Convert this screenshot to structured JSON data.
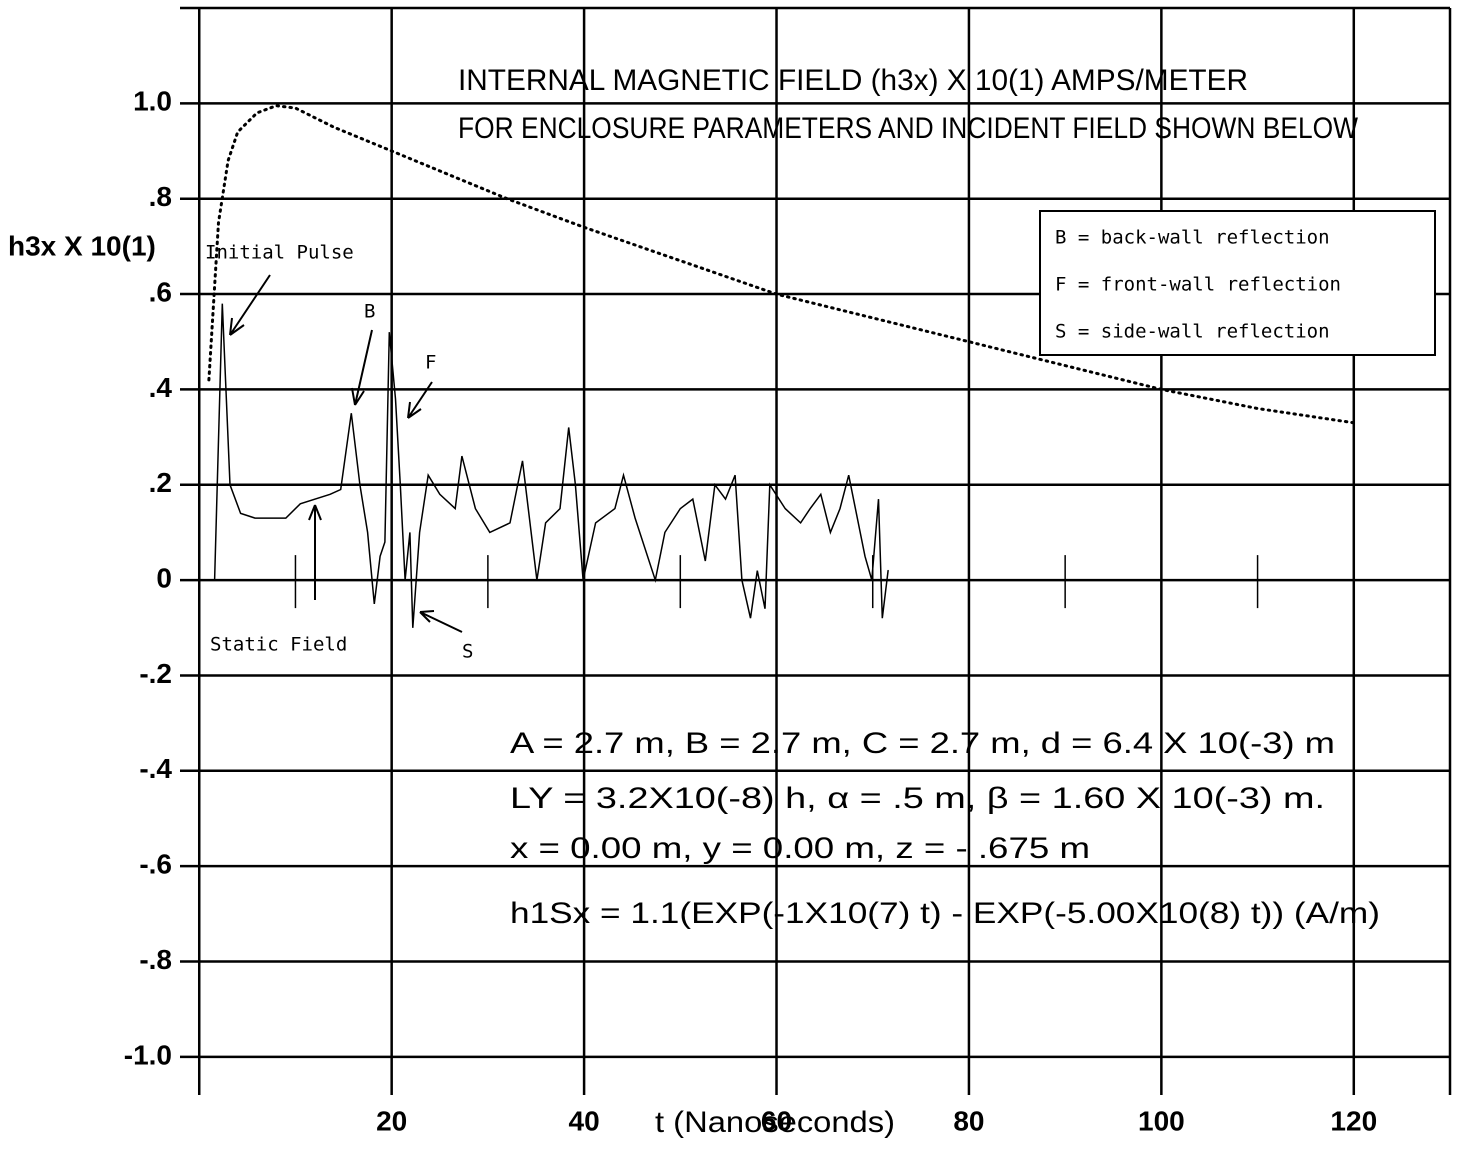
{
  "chart_data": {
    "type": "line",
    "title": [
      "INTERNAL MAGNETIC FIELD (h3x) X 10(1)  AMPS/METER",
      "FOR ENCLOSURE PARAMETERS AND INCIDENT FIELD  SHOWN BELOW"
    ],
    "ylabel": "h3x X 10(1)",
    "xlabel": "t (Nanoseconds)",
    "xlim": [
      -2,
      130
    ],
    "ylim": [
      -1.08,
      1.2
    ],
    "xticks": [
      20,
      40,
      60,
      80,
      100,
      120
    ],
    "xminorticks": [
      10,
      30,
      50,
      70,
      90,
      110
    ],
    "yticks": [
      {
        "value": 1.0,
        "label": "1.0"
      },
      {
        "value": 0.8,
        "label": ".8"
      },
      {
        "value": 0.6,
        "label": ".6"
      },
      {
        "value": 0.4,
        "label": ".4"
      },
      {
        "value": 0.2,
        "label": ".2"
      },
      0,
      {
        "value": -0.2,
        "label": "-.2"
      },
      {
        "value": -0.4,
        "label": "-.4"
      },
      {
        "value": -0.6,
        "label": "-.6"
      },
      {
        "value": -0.8,
        "label": "-.8"
      },
      {
        "value": -1.0,
        "label": "-1.0"
      }
    ],
    "grid": true,
    "series": [
      {
        "color": "#000000",
        "style": "dotted",
        "x": [
          1,
          2,
          3,
          4,
          6,
          8,
          10,
          14,
          20,
          26,
          32,
          40,
          50,
          60,
          70,
          80,
          90,
          100,
          110,
          120
        ],
        "values": [
          0.42,
          0.75,
          0.88,
          0.94,
          0.98,
          0.995,
          0.99,
          0.95,
          0.9,
          0.85,
          0.8,
          0.74,
          0.67,
          0.6,
          0.55,
          0.5,
          0.45,
          0.4,
          0.36,
          0.33
        ]
      },
      {
        "color": "#000000",
        "style": "solid",
        "x": [
          1.6,
          2.4,
          3.2,
          4.3,
          5.8,
          9.0,
          10.5,
          13.6,
          14.7,
          15.8,
          16.7,
          17.5,
          18.2,
          18.8,
          19.3,
          19.75,
          20.4,
          20.9,
          21.4,
          21.9,
          22.2,
          22.9,
          23.8,
          25.0,
          26.6,
          27.3,
          28.7,
          30.2,
          32.3,
          33.6,
          35.1,
          36.0,
          37.5,
          38.4,
          39.1,
          39.9,
          41.2,
          43.2,
          44.1,
          45.3,
          47.4,
          48.4,
          50.0,
          51.3,
          52.6,
          53.6,
          54.7,
          55.7,
          56.4,
          57.3,
          58.0,
          58.8,
          59.3,
          60.9,
          62.5,
          63.5,
          64.6,
          65.6,
          66.6,
          67.5,
          69.2,
          69.9,
          70.6,
          71.0,
          71.6
        ],
        "values": [
          0,
          0.58,
          0.2,
          0.14,
          0.13,
          0.13,
          0.16,
          0.18,
          0.19,
          0.35,
          0.2,
          0.1,
          -0.05,
          0.05,
          0.08,
          0.52,
          0.38,
          0.2,
          0.0,
          0.1,
          -0.1,
          0.1,
          0.22,
          0.18,
          0.15,
          0.26,
          0.15,
          0.1,
          0.12,
          0.25,
          0.0,
          0.12,
          0.15,
          0.32,
          0.2,
          0.0,
          0.12,
          0.15,
          0.22,
          0.13,
          0.0,
          0.1,
          0.15,
          0.17,
          0.04,
          0.2,
          0.17,
          0.22,
          0.0,
          -0.08,
          0.02,
          -0.06,
          0.2,
          0.15,
          0.12,
          0.15,
          0.18,
          0.1,
          0.15,
          0.22,
          0.05,
          0.0,
          0.17,
          -0.08,
          0.02
        ]
      }
    ],
    "annotations": [
      "Initial Pulse",
      "B",
      "F",
      "S",
      "Static Field"
    ],
    "legend_box": [
      "B = back-wall reflection",
      "F = front-wall reflection",
      "S = side-wall reflection"
    ],
    "parameters": [
      "A = 2.7 m, B = 2.7 m, C = 2.7 m, d = 6.4 X 10(-3) m",
      "LY = 3.2X10(-8) h,  α = .5 m,  β = 1.60 X 10(-3) m.",
      "x = 0.00 m, y = 0.00 m, z = - .675 m",
      "h1Sx = 1.1(EXP(-1X10(7) t) - EXP(-5.00X10(8) t))   (A/m)"
    ]
  }
}
